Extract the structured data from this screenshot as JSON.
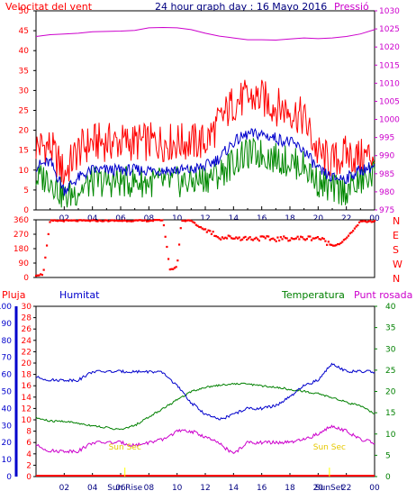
{
  "colors": {
    "wind": "#ff0000",
    "gust": "#ff0000",
    "avg": "#0000cc",
    "wind_green": "#008800",
    "pressure": "#cc00cc",
    "direction": "#ff0000",
    "rain": "#ff0000",
    "humidity": "#0000cc",
    "temperature": "#008000",
    "dewpoint": "#cc00cc",
    "sun": "#ffff00",
    "axis": "#000000"
  },
  "header": {
    "left_label": "Velocitat del vent",
    "title": "24 hour graph day : 16 Mayo 2016",
    "right_label": "Pressió"
  },
  "bottom_header": {
    "rain_label": "Pluja",
    "humidity_label": "Humitat",
    "temp_label": "Temperatura",
    "dew_label": "Punt rosada"
  },
  "chart_data": [
    {
      "type": "line",
      "name": "wind",
      "x_ticks": [
        "02",
        "04",
        "06",
        "08",
        "10",
        "12",
        "14",
        "16",
        "18",
        "20",
        "22",
        "00"
      ],
      "y_left": {
        "min": 0,
        "max": 50,
        "ticks": [
          0,
          5,
          10,
          15,
          20,
          25,
          30,
          35,
          40,
          45,
          50
        ]
      },
      "y_right": {
        "min": 975,
        "max": 1030,
        "ticks": [
          975,
          980,
          985,
          990,
          995,
          1000,
          1005,
          1010,
          1015,
          1020,
          1025,
          1030
        ]
      },
      "hours": [
        0,
        1,
        2,
        3,
        4,
        5,
        6,
        7,
        8,
        9,
        10,
        11,
        12,
        13,
        14,
        15,
        16,
        17,
        18,
        19,
        20,
        21,
        22,
        23,
        24
      ],
      "gust": [
        16,
        16,
        9,
        15,
        17,
        17,
        17,
        17,
        17,
        17,
        17,
        17,
        17,
        22,
        27,
        28,
        28,
        26,
        25,
        23,
        14,
        12,
        14,
        13,
        14
      ],
      "avg": [
        11,
        12,
        5,
        8,
        10,
        10,
        10,
        10,
        10,
        10,
        10,
        10,
        11,
        13,
        17,
        19,
        19,
        18,
        17,
        15,
        10,
        8,
        8,
        10,
        11
      ],
      "low": [
        8,
        8,
        3,
        5,
        7,
        7,
        7,
        7,
        7,
        7,
        7,
        7,
        8,
        9,
        12,
        14,
        14,
        13,
        12,
        11,
        7,
        5,
        5,
        7,
        9
      ],
      "pressure": [
        1022.9,
        1023.4,
        1023.6,
        1023.8,
        1024.2,
        1024.3,
        1024.4,
        1024.6,
        1025.3,
        1025.4,
        1025.3,
        1024.8,
        1023.8,
        1023.0,
        1022.5,
        1022.0,
        1022.0,
        1021.9,
        1022.2,
        1022.5,
        1022.3,
        1022.5,
        1022.9,
        1023.6,
        1024.8
      ]
    },
    {
      "type": "scatter",
      "name": "direction",
      "y_labels": [
        "N",
        "W",
        "S",
        "E",
        "N"
      ],
      "y_ticks": [
        0,
        90,
        180,
        270,
        360
      ],
      "hours": [
        0,
        0.5,
        1,
        2,
        3,
        4,
        5,
        6,
        7,
        8,
        9,
        9.5,
        10,
        10.3,
        11,
        11.5,
        12,
        12.5,
        13,
        14,
        15,
        16,
        17,
        18,
        19,
        20,
        21,
        21.5,
        22,
        23,
        23.5,
        24
      ],
      "degrees": [
        15,
        20,
        355,
        355,
        355,
        355,
        355,
        355,
        355,
        355,
        360,
        45,
        70,
        355,
        355,
        320,
        300,
        280,
        250,
        250,
        245,
        245,
        240,
        245,
        245,
        250,
        200,
        210,
        245,
        350,
        350,
        350
      ]
    },
    {
      "type": "line",
      "name": "humidity-temperature",
      "x_ticks": [
        "02",
        "04",
        "06",
        "08",
        "10",
        "12",
        "14",
        "16",
        "18",
        "20",
        "22",
        "00"
      ],
      "rain_axis": {
        "min": 0,
        "max": 100,
        "ticks": [
          0,
          10,
          20,
          30,
          40,
          50,
          60,
          70,
          80,
          90,
          100
        ]
      },
      "humidity_axis": {
        "min": 0,
        "max": 30,
        "ticks": [
          0,
          2,
          4,
          6,
          8,
          10,
          12,
          14,
          16,
          18,
          20,
          22,
          24,
          26,
          28,
          30
        ]
      },
      "temp_axis": {
        "min": 0,
        "max": 40,
        "ticks": [
          0,
          5,
          10,
          15,
          20,
          25,
          30,
          35,
          40
        ]
      },
      "hours": [
        0,
        1,
        2,
        3,
        4,
        5,
        6,
        7,
        8,
        9,
        10,
        11,
        12,
        13,
        14,
        15,
        16,
        17,
        18,
        19,
        20,
        21,
        22,
        23,
        24
      ],
      "humidity": [
        17.5,
        17,
        17,
        17,
        18.5,
        18.5,
        18.5,
        18.5,
        18.5,
        18.3,
        16,
        13,
        11,
        10,
        11,
        12,
        12,
        12.5,
        14,
        16,
        17,
        20,
        18.5,
        18.5,
        18.5
      ],
      "temperature": [
        13.8,
        13,
        13,
        12.5,
        12,
        11.5,
        11,
        12,
        14,
        16,
        18,
        20,
        21,
        21.5,
        21.8,
        21.8,
        21.3,
        21,
        20.5,
        20,
        19.5,
        18.5,
        17.5,
        16.5,
        14.8
      ],
      "dewpoint": [
        5.5,
        4.5,
        4.5,
        4.5,
        6,
        6,
        6,
        5.5,
        6,
        6.5,
        8,
        8,
        7,
        5.8,
        4,
        6,
        6,
        6,
        6,
        6.5,
        7.5,
        9,
        8,
        6.5,
        6
      ],
      "rain": [
        0,
        0,
        0,
        0,
        0,
        0,
        0,
        0,
        0,
        0,
        0,
        0,
        0,
        0,
        0,
        0,
        0,
        0,
        0,
        0,
        0,
        0,
        0,
        0,
        0
      ],
      "sun_rise": {
        "label": "Sun Sec",
        "marker": "Sun Rise",
        "hour": 6.3
      },
      "sun_set": {
        "label": "Sun Sec",
        "marker": "SunSet",
        "hour": 20.8
      }
    }
  ]
}
